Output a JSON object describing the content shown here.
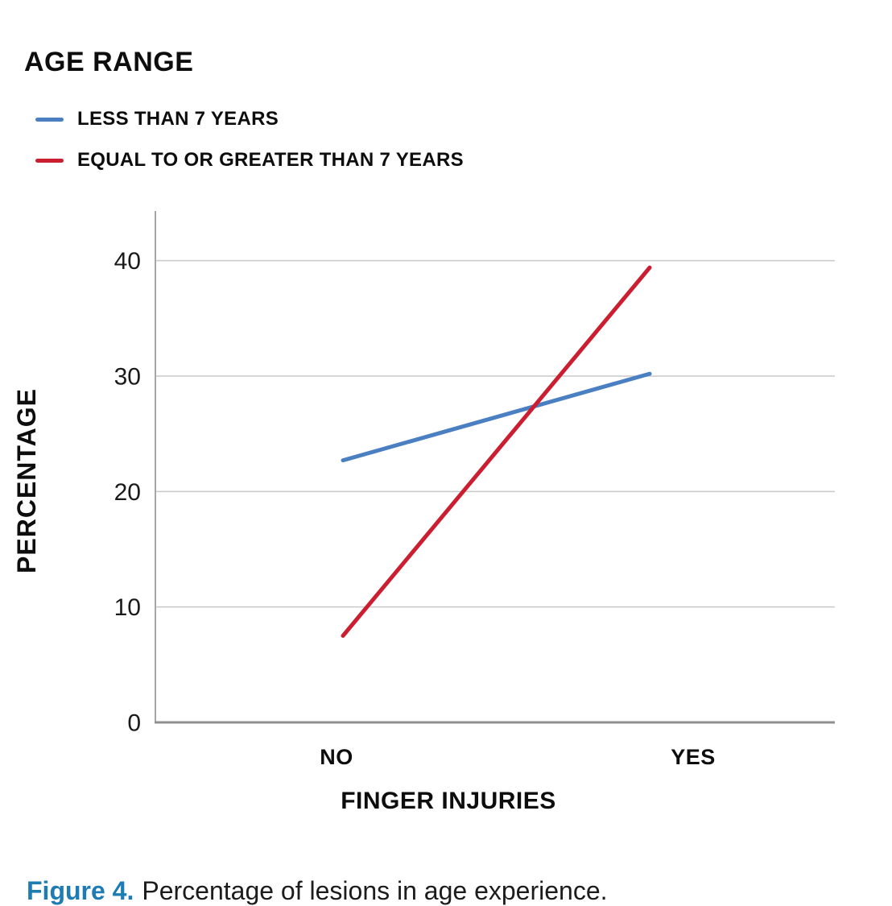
{
  "legend": {
    "title": "AGE RANGE",
    "items": [
      {
        "label": "LESS THAN 7 YEARS",
        "color": "#4A7FC1",
        "swatch_icon": "line-swatch"
      },
      {
        "label": "EQUAL TO OR GREATER THAN 7 YEARS",
        "color": "#CB1F31",
        "swatch_icon": "line-swatch"
      }
    ]
  },
  "chart_data": {
    "type": "line",
    "categories": [
      "NO",
      "YES"
    ],
    "series": [
      {
        "name": "LESS THAN 7 YEARS",
        "color": "#4A7FC1",
        "values": [
          22.7,
          30.2
        ]
      },
      {
        "name": "EQUAL TO OR GREATER THAN 7 YEARS",
        "color": "#CB1F31",
        "values": [
          7.5,
          39.4
        ]
      }
    ],
    "title": "",
    "xlabel": "FINGER INJURIES",
    "ylabel": "PERCENTAGE",
    "ylim": [
      0,
      44.3
    ],
    "yticks": [
      0,
      10,
      20,
      30,
      40
    ],
    "grid": true,
    "legend_position": "top-left",
    "colors": {
      "gridline": "#C9C9C9",
      "y_axis": "#A6A6A6",
      "x_axis": "#8F8F8F"
    }
  },
  "figure": {
    "caption_label": "Figure 4.",
    "caption_text": "Percentage of lesions in age experience.",
    "caption_label_color": "#1E7CB3"
  }
}
